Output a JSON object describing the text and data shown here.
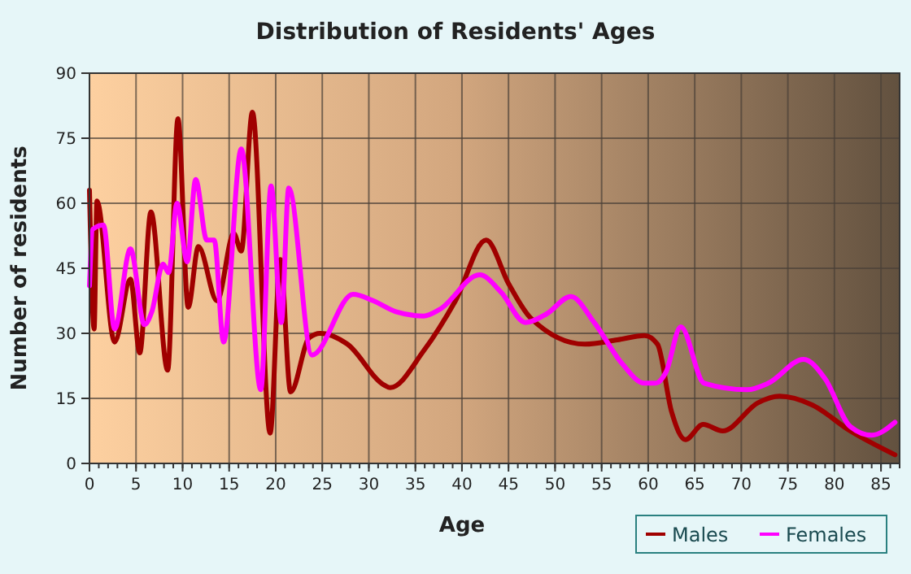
{
  "chart_data": {
    "type": "line",
    "title": "Distribution of Residents' Ages",
    "xlabel": "Age",
    "ylabel": "Number of residents",
    "xlim": [
      0,
      87
    ],
    "xticks": [
      0,
      5,
      10,
      15,
      20,
      25,
      30,
      35,
      40,
      45,
      50,
      55,
      60,
      65,
      70,
      75,
      80,
      85
    ],
    "ylim": [
      0,
      90
    ],
    "yticks": [
      0,
      15,
      30,
      45,
      60,
      75,
      90
    ],
    "grid": true,
    "legend": "bottom right",
    "series": [
      {
        "name": "Males",
        "color": "#a00000",
        "x": [
          0,
          0.5,
          0.8,
          2.7,
          4.4,
          5.4,
          6.6,
          8.4,
          9.5,
          10.6,
          11.7,
          13.7,
          15.5,
          16.3,
          17.5,
          19.4,
          20.5,
          21.6,
          23.6,
          24.8,
          27.7,
          31.7,
          32.3,
          35.9,
          39.3,
          42.6,
          45,
          47.4,
          53.2,
          56.7,
          59.6,
          61,
          62.5,
          64,
          65.9,
          68,
          71.8,
          74.1,
          77.6,
          81.7,
          86.5
        ],
        "values": [
          63,
          31,
          60.5,
          28,
          42.5,
          25.5,
          58,
          21.5,
          79.5,
          36,
          50,
          37.5,
          53,
          49,
          81,
          7,
          47,
          16.5,
          29,
          30,
          27.5,
          18,
          17.5,
          26,
          37.5,
          51.5,
          41.5,
          33.5,
          27.5,
          28.5,
          29.5,
          27.5,
          12,
          5.5,
          9,
          7.5,
          14,
          15.5,
          13.5,
          7.5,
          2
        ]
      },
      {
        "name": "Females",
        "color": "#ff00ff",
        "x": [
          0,
          0.35,
          1.5,
          2.7,
          4.4,
          5.9,
          6.7,
          7.9,
          8.5,
          9.4,
          10.5,
          11.4,
          12.6,
          13.4,
          14.4,
          16.3,
          18.4,
          19.5,
          20.6,
          21.4,
          23.9,
          28.3,
          30.5,
          32.9,
          35.9,
          37.6,
          41.9,
          44.2,
          46.8,
          49.1,
          51.7,
          54.2,
          57.2,
          59.6,
          60.8,
          61.9,
          63.5,
          66,
          70.6,
          72.9,
          76.7,
          79,
          81.7,
          84,
          86.5
        ],
        "values": [
          41,
          54,
          55,
          31,
          49.5,
          32,
          35,
          46,
          44,
          60,
          46.5,
          65.5,
          51.5,
          51.5,
          28,
          72.5,
          17,
          64,
          32.5,
          63.5,
          25,
          39,
          37.5,
          35,
          34,
          35.5,
          43.5,
          39.5,
          32.5,
          34.5,
          38.5,
          32.5,
          23,
          18.5,
          18.5,
          21,
          31.5,
          18.5,
          17,
          18.5,
          24,
          19.5,
          8.5,
          6.5,
          9.5
        ]
      }
    ]
  }
}
